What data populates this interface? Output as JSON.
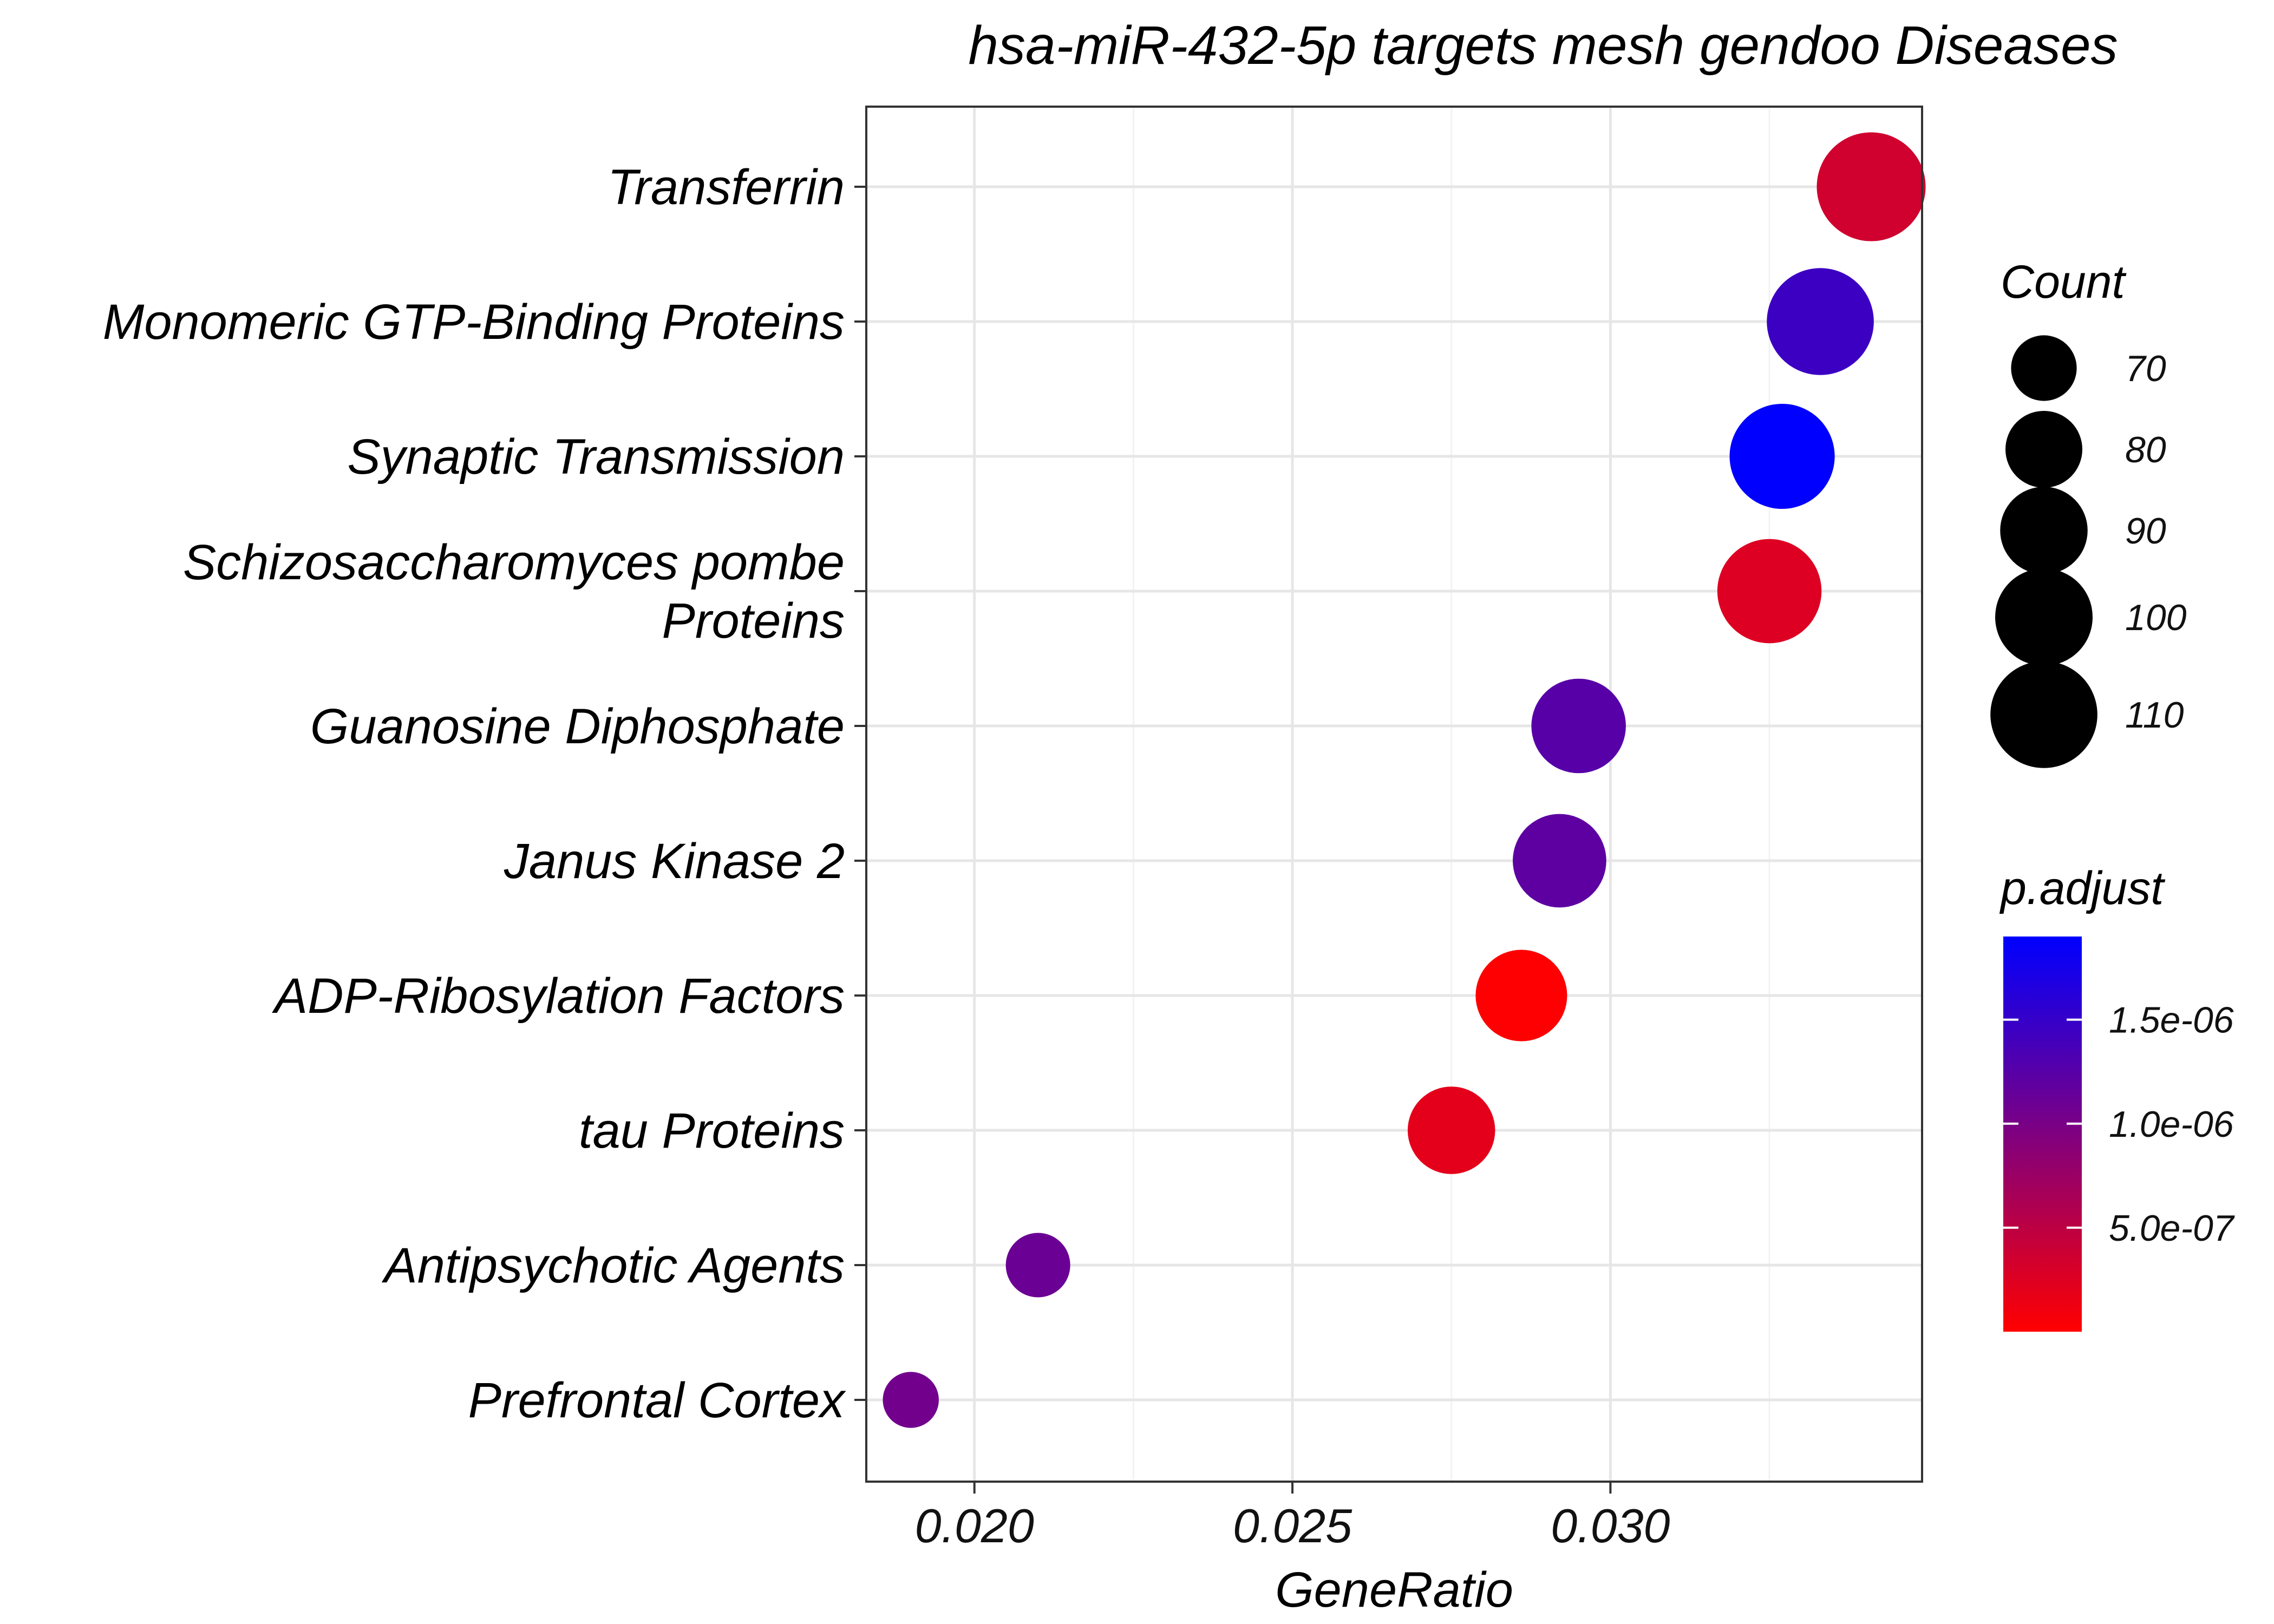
{
  "chart_data": {
    "type": "scatter",
    "title": "hsa-miR-432-5p targets mesh gendoo Diseases",
    "xlabel": "GeneRatio",
    "ylabel": "",
    "xlim": [
      0.0183,
      0.0349
    ],
    "xticks": [
      0.02,
      0.025,
      0.03
    ],
    "xtick_labels": [
      "0.020",
      "0.025",
      "0.030"
    ],
    "grid": true,
    "colors": {
      "low": "#ff0000",
      "high": "#0000ff"
    },
    "points": [
      {
        "label": "Transferrin",
        "label_lines": [
          "Transferrin"
        ],
        "x": 0.0341,
        "count": 112,
        "p_adjust": 3.5e-07
      },
      {
        "label": "Monomeric GTP-Binding Proteins",
        "label_lines": [
          "Monomeric GTP-Binding Proteins"
        ],
        "x": 0.0333,
        "count": 110,
        "p_adjust": 1.45e-06
      },
      {
        "label": "Synaptic Transmission",
        "label_lines": [
          "Synaptic Transmission"
        ],
        "x": 0.0327,
        "count": 108,
        "p_adjust": 1.95e-06
      },
      {
        "label": "Schizosaccharomyces pombe Proteins",
        "label_lines": [
          "Schizosaccharomyces pombe",
          "Proteins"
        ],
        "x": 0.0325,
        "count": 107,
        "p_adjust": 2.5e-07
      },
      {
        "label": "Guanosine Diphosphate",
        "label_lines": [
          "Guanosine Diphosphate"
        ],
        "x": 0.0295,
        "count": 97,
        "p_adjust": 1.25e-06
      },
      {
        "label": "Janus Kinase 2",
        "label_lines": [
          "Janus Kinase 2"
        ],
        "x": 0.0292,
        "count": 96,
        "p_adjust": 1.2e-06
      },
      {
        "label": "ADP-Ribosylation Factors",
        "label_lines": [
          "ADP-Ribosylation Factors"
        ],
        "x": 0.0286,
        "count": 94,
        "p_adjust": 1e-08
      },
      {
        "label": "tau Proteins",
        "label_lines": [
          "tau Proteins"
        ],
        "x": 0.0275,
        "count": 90,
        "p_adjust": 2e-07
      },
      {
        "label": "Antipsychotic Agents",
        "label_lines": [
          "Antipsychotic Agents"
        ],
        "x": 0.021,
        "count": 69,
        "p_adjust": 1.1e-06
      },
      {
        "label": "Prefrontal Cortex",
        "label_lines": [
          "Prefrontal Cortex"
        ],
        "x": 0.019,
        "count": 62,
        "p_adjust": 1.05e-06
      }
    ],
    "legend_size": {
      "title": "Count",
      "placement": "right",
      "values": [
        70,
        80,
        90,
        100,
        110
      ],
      "labels": [
        "70",
        "80",
        "90",
        "100",
        "110"
      ]
    },
    "legend_color": {
      "title": "p.adjust",
      "placement": "right",
      "range": [
        0,
        1.9e-06
      ],
      "ticks": [
        1.5e-06,
        1e-06,
        5e-07
      ],
      "tick_labels": [
        "1.5e-06",
        "1.0e-06",
        "5.0e-07"
      ]
    }
  }
}
